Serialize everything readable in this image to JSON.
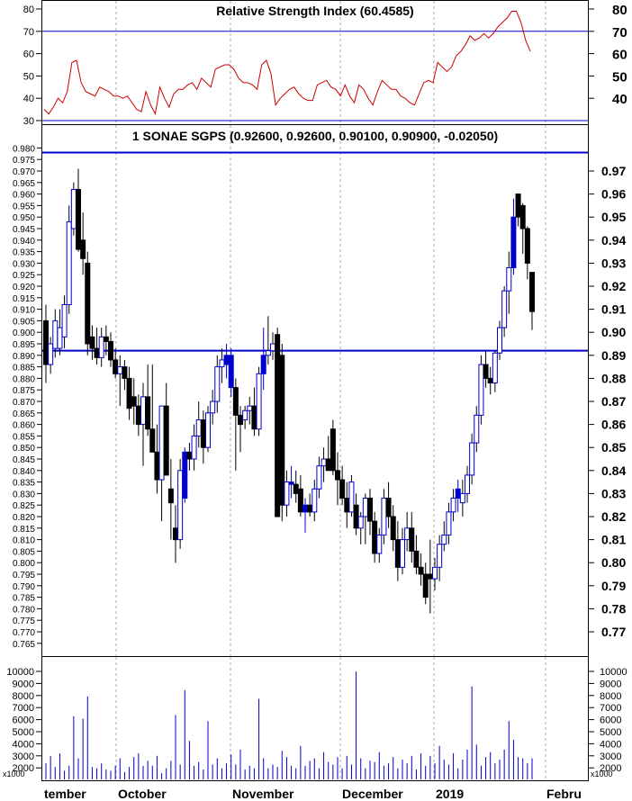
{
  "colors": {
    "up": "#0000cc",
    "down": "#000000",
    "hline": "#0000cc",
    "rsi": "#cc0000",
    "volume": "#0000cc",
    "grid": "#aaaaaa"
  },
  "rsi_panel": {
    "title": "Relative Strength Index (60.4585)",
    "left_ticks": [
      "80",
      "70",
      "60",
      "50",
      "40",
      "30"
    ],
    "right_ticks": [
      "80",
      "70",
      "60",
      "50",
      "40"
    ]
  },
  "price_panel": {
    "title": "1 SONAE SGPS (0.92600, 0.92600, 0.90100, 0.90900, -0.02050)"
  },
  "volume_panel": {
    "unit_label": "x1000",
    "ticks": [
      "10000",
      "9000",
      "8000",
      "7000",
      "6000",
      "5000",
      "4000",
      "3000",
      "2000"
    ]
  },
  "months": [
    "tember",
    "October",
    "November",
    "December",
    "2019",
    "Febru"
  ],
  "chart_data": [
    {
      "type": "line",
      "title": "Relative Strength Index (60.4585)",
      "ylim": [
        30,
        85
      ],
      "hlines": [
        70,
        30
      ],
      "values": [
        35,
        33,
        36,
        40,
        38,
        43,
        56,
        57,
        47,
        43,
        42,
        41,
        45,
        44,
        43,
        41,
        41,
        40,
        41,
        38,
        35,
        34,
        43,
        37,
        33,
        45,
        40,
        36,
        42,
        44,
        44,
        46,
        47,
        44,
        49,
        47,
        45,
        53,
        54,
        55,
        55,
        53,
        49,
        47,
        47,
        46,
        44,
        55,
        57,
        51,
        37,
        40,
        42,
        44,
        45,
        42,
        40,
        39,
        39,
        46,
        47,
        48,
        45,
        44,
        41,
        46,
        41,
        38,
        46,
        44,
        40,
        37,
        43,
        48,
        46,
        44,
        44,
        41,
        40,
        38,
        37,
        42,
        47,
        48,
        47,
        56,
        54,
        52,
        54,
        59,
        61,
        64,
        68,
        66,
        67,
        69,
        67,
        69,
        72,
        74,
        76,
        79,
        79,
        74,
        66,
        61
      ]
    },
    {
      "type": "candlestick",
      "title": "1 SONAE SGPS (0.92600, 0.92600, 0.90100, 0.90900, -0.02050)",
      "ylim": [
        0.76,
        0.98
      ],
      "hlines": [
        0.978,
        0.892
      ],
      "y_ticks": [
        0.97,
        0.96,
        0.95,
        0.94,
        0.93,
        0.92,
        0.91,
        0.9,
        0.89,
        0.88,
        0.87,
        0.86,
        0.85,
        0.84,
        0.83,
        0.82,
        0.81,
        0.8,
        0.79,
        0.78,
        0.77
      ],
      "ohlc": [
        [
          0.905,
          0.912,
          0.878,
          0.886
        ],
        [
          0.886,
          0.898,
          0.882,
          0.895
        ],
        [
          0.893,
          0.91,
          0.889,
          0.905
        ],
        [
          0.893,
          0.91,
          0.89,
          0.902
        ],
        [
          0.898,
          0.916,
          0.893,
          0.912
        ],
        [
          0.912,
          0.955,
          0.908,
          0.948
        ],
        [
          0.945,
          0.965,
          0.942,
          0.962
        ],
        [
          0.962,
          0.971,
          0.935,
          0.936
        ],
        [
          0.94,
          0.952,
          0.925,
          0.932
        ],
        [
          0.93,
          0.935,
          0.89,
          0.895
        ],
        [
          0.898,
          0.903,
          0.888,
          0.893
        ],
        [
          0.893,
          0.902,
          0.886,
          0.889
        ],
        [
          0.889,
          0.902,
          0.885,
          0.898
        ],
        [
          0.898,
          0.903,
          0.89,
          0.896
        ],
        [
          0.896,
          0.9,
          0.885,
          0.888
        ],
        [
          0.888,
          0.893,
          0.88,
          0.882
        ],
        [
          0.882,
          0.89,
          0.868,
          0.885
        ],
        [
          0.885,
          0.888,
          0.875,
          0.88
        ],
        [
          0.88,
          0.885,
          0.862,
          0.867
        ],
        [
          0.872,
          0.88,
          0.86,
          0.868
        ],
        [
          0.868,
          0.873,
          0.855,
          0.86
        ],
        [
          0.86,
          0.878,
          0.842,
          0.872
        ],
        [
          0.872,
          0.886,
          0.855,
          0.858
        ],
        [
          0.858,
          0.886,
          0.848,
          0.848
        ],
        [
          0.848,
          0.86,
          0.83,
          0.836
        ],
        [
          0.836,
          0.868,
          0.818,
          0.868
        ],
        [
          0.868,
          0.878,
          0.838,
          0.838
        ],
        [
          0.832,
          0.845,
          0.81,
          0.826
        ],
        [
          0.815,
          0.825,
          0.8,
          0.81
        ],
        [
          0.81,
          0.845,
          0.806,
          0.84
        ],
        [
          0.828,
          0.85,
          0.826,
          0.848
        ],
        [
          0.848,
          0.852,
          0.84,
          0.845
        ],
        [
          0.845,
          0.86,
          0.84,
          0.855
        ],
        [
          0.855,
          0.87,
          0.85,
          0.862
        ],
        [
          0.862,
          0.866,
          0.843,
          0.85
        ],
        [
          0.85,
          0.868,
          0.848,
          0.865
        ],
        [
          0.865,
          0.875,
          0.86,
          0.87
        ],
        [
          0.87,
          0.89,
          0.865,
          0.885
        ],
        [
          0.885,
          0.893,
          0.878,
          0.888
        ],
        [
          0.886,
          0.895,
          0.88,
          0.89
        ],
        [
          0.89,
          0.893,
          0.872,
          0.876
        ],
        [
          0.876,
          0.88,
          0.84,
          0.864
        ],
        [
          0.864,
          0.868,
          0.848,
          0.86
        ],
        [
          0.862,
          0.868,
          0.858,
          0.866
        ],
        [
          0.866,
          0.872,
          0.86,
          0.868
        ],
        [
          0.868,
          0.876,
          0.855,
          0.858
        ],
        [
          0.858,
          0.885,
          0.855,
          0.882
        ],
        [
          0.882,
          0.902,
          0.875,
          0.89
        ],
        [
          0.89,
          0.907,
          0.886,
          0.892
        ],
        [
          0.892,
          0.9,
          0.888,
          0.895
        ],
        [
          0.899,
          0.902,
          0.82,
          0.82
        ],
        [
          0.89,
          0.895,
          0.818,
          0.825
        ],
        [
          0.825,
          0.84,
          0.82,
          0.835
        ],
        [
          0.835,
          0.842,
          0.828,
          0.834
        ],
        [
          0.834,
          0.84,
          0.826,
          0.83
        ],
        [
          0.832,
          0.838,
          0.82,
          0.822
        ],
        [
          0.822,
          0.828,
          0.813,
          0.825
        ],
        [
          0.825,
          0.83,
          0.82,
          0.822
        ],
        [
          0.822,
          0.836,
          0.818,
          0.832
        ],
        [
          0.832,
          0.846,
          0.828,
          0.842
        ],
        [
          0.842,
          0.85,
          0.835,
          0.845
        ],
        [
          0.845,
          0.855,
          0.84,
          0.84
        ],
        [
          0.858,
          0.862,
          0.838,
          0.84
        ],
        [
          0.84,
          0.848,
          0.825,
          0.836
        ],
        [
          0.836,
          0.842,
          0.825,
          0.828
        ],
        [
          0.828,
          0.835,
          0.815,
          0.822
        ],
        [
          0.822,
          0.838,
          0.82,
          0.835
        ],
        [
          0.825,
          0.83,
          0.812,
          0.815
        ],
        [
          0.815,
          0.822,
          0.808,
          0.82
        ],
        [
          0.82,
          0.83,
          0.808,
          0.828
        ],
        [
          0.828,
          0.832,
          0.812,
          0.818
        ],
        [
          0.818,
          0.822,
          0.8,
          0.804
        ],
        [
          0.804,
          0.815,
          0.8,
          0.812
        ],
        [
          0.812,
          0.832,
          0.808,
          0.828
        ],
        [
          0.828,
          0.835,
          0.815,
          0.82
        ],
        [
          0.82,
          0.825,
          0.805,
          0.81
        ],
        [
          0.81,
          0.818,
          0.792,
          0.798
        ],
        [
          0.798,
          0.815,
          0.795,
          0.81
        ],
        [
          0.81,
          0.822,
          0.805,
          0.815
        ],
        [
          0.815,
          0.822,
          0.8,
          0.805
        ],
        [
          0.805,
          0.812,
          0.795,
          0.798
        ],
        [
          0.798,
          0.804,
          0.79,
          0.795
        ],
        [
          0.795,
          0.8,
          0.782,
          0.785
        ],
        [
          0.795,
          0.81,
          0.778,
          0.793
        ],
        [
          0.793,
          0.802,
          0.788,
          0.798
        ],
        [
          0.798,
          0.812,
          0.792,
          0.808
        ],
        [
          0.808,
          0.818,
          0.805,
          0.812
        ],
        [
          0.812,
          0.826,
          0.808,
          0.822
        ],
        [
          0.822,
          0.832,
          0.818,
          0.828
        ],
        [
          0.828,
          0.836,
          0.822,
          0.832
        ],
        [
          0.826,
          0.836,
          0.82,
          0.83
        ],
        [
          0.83,
          0.842,
          0.826,
          0.838
        ],
        [
          0.838,
          0.856,
          0.834,
          0.852
        ],
        [
          0.852,
          0.868,
          0.848,
          0.864
        ],
        [
          0.864,
          0.89,
          0.86,
          0.886
        ],
        [
          0.886,
          0.892,
          0.876,
          0.88
        ],
        [
          0.88,
          0.885,
          0.873,
          0.878
        ],
        [
          0.878,
          0.892,
          0.874,
          0.891
        ],
        [
          0.891,
          0.905,
          0.888,
          0.902
        ],
        [
          0.902,
          0.92,
          0.898,
          0.918
        ],
        [
          0.918,
          0.935,
          0.908,
          0.928
        ],
        [
          0.928,
          0.958,
          0.925,
          0.95
        ],
        [
          0.96,
          0.96,
          0.946,
          0.95
        ],
        [
          0.955,
          0.956,
          0.934,
          0.945
        ],
        [
          0.945,
          0.946,
          0.923,
          0.93
        ],
        [
          0.926,
          0.926,
          0.901,
          0.909
        ]
      ],
      "colored_blue_bars": [
        30,
        39,
        40,
        47,
        53,
        56,
        89,
        101
      ]
    },
    {
      "type": "bar",
      "title": "",
      "unit": "x1000",
      "ylim": [
        1500,
        10500
      ],
      "values": [
        2800,
        3400,
        2500,
        3600,
        2200,
        2600,
        6600,
        3200,
        6400,
        8200,
        2500,
        2400,
        2800,
        2300,
        2200,
        2600,
        3200,
        2100,
        2500,
        3300,
        3600,
        2600,
        3000,
        2600,
        3400,
        2000,
        2400,
        3000,
        6700,
        2700,
        8700,
        4600,
        2600,
        2900,
        2300,
        6200,
        2700,
        3200,
        2400,
        2800,
        3500,
        2700,
        3900,
        2300,
        2600,
        2400,
        8000,
        3200,
        2400,
        2700,
        2500,
        3800,
        3300,
        2600,
        2400,
        4200,
        2600,
        3000,
        3200,
        2400,
        3700,
        2900,
        2700,
        3300,
        2400,
        3400,
        2700,
        10200,
        3200,
        2400,
        3000,
        2900,
        3700,
        2600,
        2800,
        3300,
        2400,
        3100,
        2800,
        3400,
        2300,
        3600,
        2600,
        3400,
        2800,
        4200,
        3100,
        2700,
        3600,
        2400,
        3100,
        3900,
        9000,
        4300,
        2600,
        3300,
        3700,
        2800,
        3100,
        3900,
        6200,
        4700,
        3300,
        3200,
        2800,
        3200
      ]
    }
  ]
}
